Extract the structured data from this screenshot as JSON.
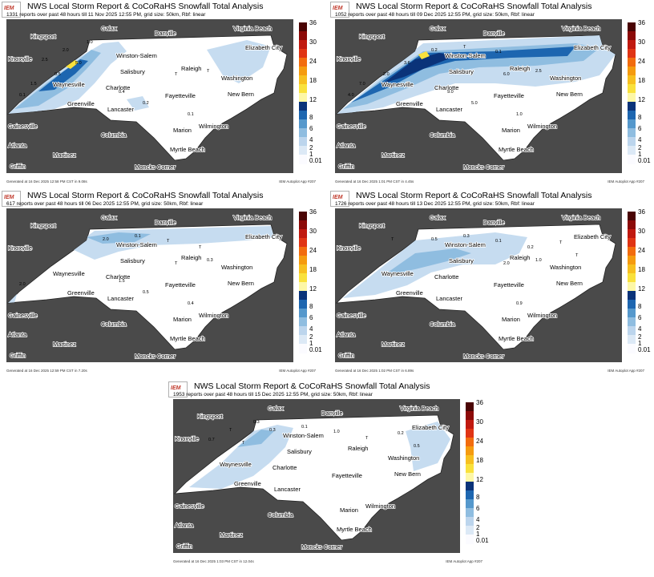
{
  "colorbar": {
    "ticks": [
      "36",
      "30",
      "24",
      "18",
      "12",
      "8",
      "6",
      "4",
      "2",
      "1",
      "0.01"
    ],
    "colors": [
      "#fbfbff",
      "#dce9f6",
      "#bcd5ed",
      "#8fbde0",
      "#5598cc",
      "#1d66b0",
      "#0a3379",
      "#fdf7a6",
      "#f9e13c",
      "#f7c020",
      "#f59b0f",
      "#f26c0e",
      "#e03414",
      "#c0190f",
      "#8c0a08",
      "#4a0404"
    ]
  },
  "colors": {
    "background": "#4a4a4a",
    "state": "#ffffff",
    "light_snow": "#c6dcf0",
    "mid_snow": "#8fbde0",
    "heavy_snow": "#1d66b0",
    "very_heavy": "#0a3379",
    "yellow": "#f9e13c"
  },
  "panels": [
    {
      "title": "NWS Local Storm Report & CoCoRaHS Snowfall Total Analysis",
      "subtitle": "1331 reports over past 48 hours till 11 Nov 2025 12:55 PM, grid size: 50km, Rbf: linear",
      "footer_left": "Generated at 16 Dec 2025 12:58 PM CST in 9.08s",
      "footer_right": "IEM Autoplot App #207",
      "values": [
        "2.0",
        "1.0",
        "2.5",
        "5.0",
        "0.5",
        "1.5",
        "0.1",
        "0.4",
        "0.2",
        "T",
        "T",
        "0.1"
      ]
    },
    {
      "title": "NWS Local Storm Report & CoCoRaHS Snowfall Total Analysis",
      "subtitle": "1052 reports over past 48 hours till 09 Dec 2025 12:55 PM, grid size: 50km, Rbf: linear",
      "footer_left": "Generated at 16 Dec 2025 1:01 PM CST in 4.45s",
      "footer_right": "IEM Autoplot App #207",
      "values": [
        "3.6",
        "2.0",
        "7.0",
        "4.0",
        "9.0",
        "5.0",
        "6.0",
        "2.5",
        "1.0",
        "0.2",
        "T",
        "0.1"
      ]
    },
    {
      "title": "NWS Local Storm Report & CoCoRaHS Snowfall Total Analysis",
      "subtitle": "617 reports over past 48 hours till 06 Dec 2025 12:55 PM, grid size: 50km, Rbf: linear",
      "footer_left": "Generated at 16 Dec 2025 12:59 PM CST in 7.20s",
      "footer_right": "IEM Autoplot App #207",
      "values": [
        "2.0",
        "1.5",
        "0.5",
        "T",
        "0.3",
        "0.4",
        "2.0",
        "0.1",
        "T",
        "T"
      ]
    },
    {
      "title": "NWS Local Storm Report & CoCoRaHS Snowfall Total Analysis",
      "subtitle": "1726 reports over past 48 hours till 13 Dec 2025 12:55 PM, grid size: 50km, Rbf: linear",
      "footer_left": "Generated at 16 Dec 2025 1:02 PM CST in 6.89s",
      "footer_right": "IEM Autoplot App #207",
      "values": [
        "2.0",
        "1.0",
        "0.9",
        "0.5",
        "0.3",
        "0.1",
        "0.2",
        "T",
        "T",
        "T"
      ]
    },
    {
      "title": "NWS Local Storm Report & CoCoRaHS Snowfall Total Analysis",
      "subtitle": "1953 reports over past 48 hours till 15 Dec 2025 12:55 PM, grid size: 50km, Rbf: linear",
      "footer_left": "Generated at 16 Dec 2025 1:03 PM CST in 12.04s",
      "footer_right": "IEM Autoplot App #207",
      "values": [
        "0.3",
        "0.1",
        "1.0",
        "T",
        "0.2",
        "0.5",
        "T",
        "0.3",
        "0.7",
        "T"
      ]
    }
  ],
  "cities": [
    {
      "name": "Galax",
      "x": 118,
      "y": 14
    },
    {
      "name": "Danville",
      "x": 185,
      "y": 20
    },
    {
      "name": "Virginia Beach",
      "x": 283,
      "y": 14
    },
    {
      "name": "Kingsport",
      "x": 30,
      "y": 24
    },
    {
      "name": "Elizabeth City",
      "x": 298,
      "y": 38
    },
    {
      "name": "Winston-Salem",
      "x": 137,
      "y": 48
    },
    {
      "name": "Knoxville",
      "x": 2,
      "y": 52
    },
    {
      "name": "Salisbury",
      "x": 142,
      "y": 68
    },
    {
      "name": "Raleigh",
      "x": 218,
      "y": 64
    },
    {
      "name": "Washington",
      "x": 268,
      "y": 76
    },
    {
      "name": "Waynesville",
      "x": 58,
      "y": 84
    },
    {
      "name": "Charlotte",
      "x": 124,
      "y": 88
    },
    {
      "name": "Fayetteville",
      "x": 198,
      "y": 98
    },
    {
      "name": "New Bern",
      "x": 276,
      "y": 96
    },
    {
      "name": "Greenville",
      "x": 76,
      "y": 108
    },
    {
      "name": "Lancaster",
      "x": 126,
      "y": 115
    },
    {
      "name": "Gainesville",
      "x": 2,
      "y": 136
    },
    {
      "name": "Wilmington",
      "x": 240,
      "y": 136
    },
    {
      "name": "Marion",
      "x": 208,
      "y": 141
    },
    {
      "name": "Atlanta",
      "x": 2,
      "y": 160
    },
    {
      "name": "Columbia",
      "x": 118,
      "y": 147
    },
    {
      "name": "Myrtle Beach",
      "x": 204,
      "y": 165
    },
    {
      "name": "Martinez",
      "x": 58,
      "y": 172
    },
    {
      "name": "Moncks Corner",
      "x": 160,
      "y": 187
    },
    {
      "name": "Griffin",
      "x": 4,
      "y": 186
    }
  ]
}
